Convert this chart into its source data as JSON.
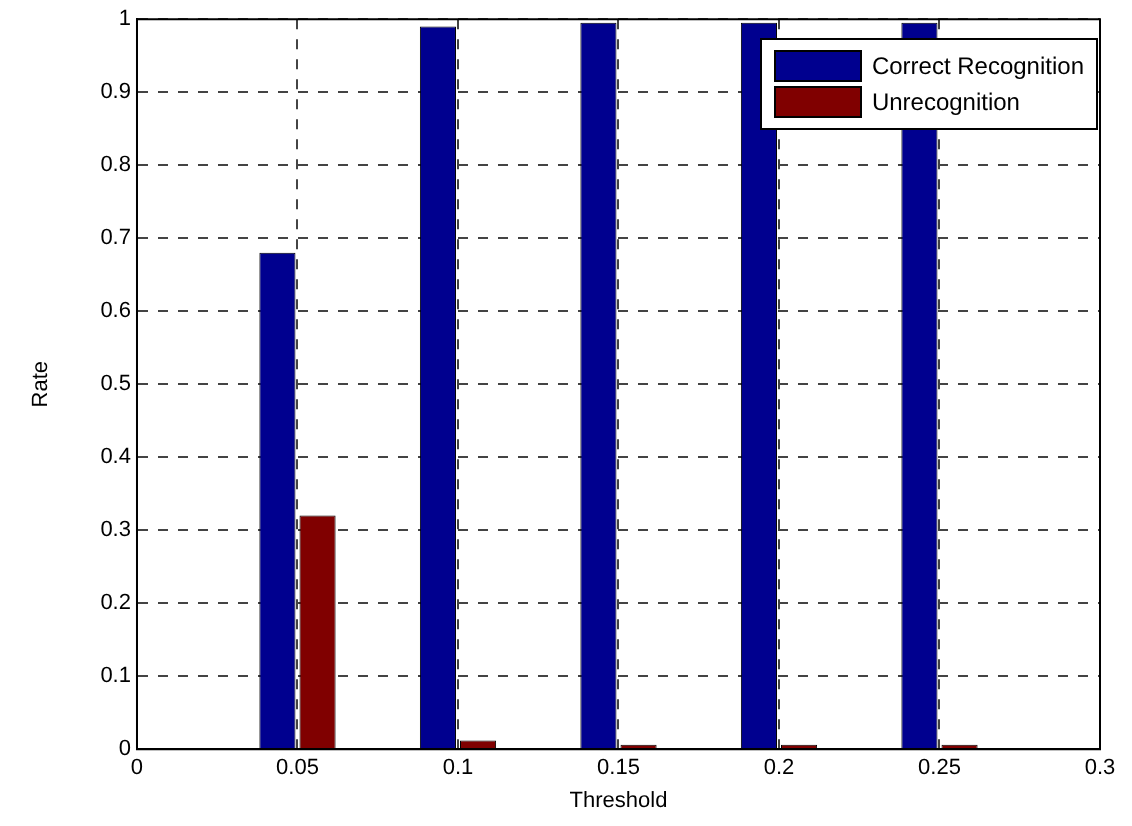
{
  "chart_data": {
    "type": "bar",
    "xlabel": "Threshold",
    "ylabel": "Rate",
    "x": [
      0.05,
      0.1,
      0.15,
      0.2,
      0.25
    ],
    "series": [
      {
        "name": "Correct Recognition",
        "color": "#00008f",
        "values": [
          0.68,
          0.99,
          0.995,
          0.995,
          0.995
        ]
      },
      {
        "name": "Unrecognition",
        "color": "#800000",
        "values": [
          0.32,
          0.012,
          0.006,
          0.006,
          0.006
        ]
      }
    ],
    "xlim": [
      0,
      0.3
    ],
    "xticks": [
      0,
      0.05,
      0.1,
      0.15,
      0.2,
      0.25,
      0.3
    ],
    "ylim": [
      0,
      1
    ],
    "yticks": [
      0,
      0.1,
      0.2,
      0.3,
      0.4,
      0.5,
      0.6,
      0.7,
      0.8,
      0.9,
      1
    ],
    "grid": true,
    "legend": "top right"
  }
}
